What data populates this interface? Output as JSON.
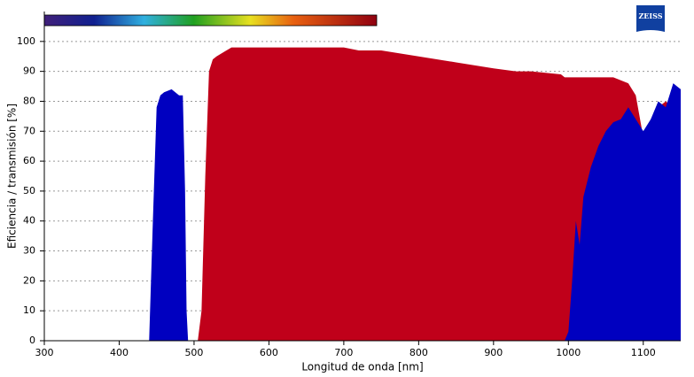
{
  "chart_data": {
    "type": "area",
    "logo": "ZEISS",
    "xlabel": "Longitud de onda [nm]",
    "ylabel": "Eficiencia / transmisión [%]",
    "x": [
      300,
      440,
      445,
      450,
      455,
      460,
      470,
      480,
      485,
      488,
      490,
      492,
      505,
      510,
      515,
      520,
      525,
      530,
      550,
      600,
      650,
      700,
      720,
      750,
      800,
      850,
      900,
      930,
      950,
      990,
      995,
      1000,
      1005,
      1010,
      1015,
      1020,
      1030,
      1040,
      1050,
      1060,
      1070,
      1080,
      1090,
      1100,
      1110,
      1120,
      1130,
      1140,
      1150
    ],
    "series": [
      {
        "color": "#c0001a",
        "values": [
          0,
          0,
          0,
          0,
          0,
          0,
          0,
          0,
          0,
          0,
          0,
          0,
          0,
          10,
          55,
          90,
          94,
          95,
          98,
          98,
          98,
          98,
          97,
          97,
          95,
          93,
          91,
          90,
          90,
          89,
          88,
          88,
          88,
          88,
          88,
          88,
          88,
          88,
          88,
          88,
          87,
          86,
          82,
          68,
          74,
          78,
          80,
          78,
          82
        ]
      },
      {
        "color": "#0000c0",
        "values": [
          0,
          0,
          40,
          78,
          82,
          83,
          84,
          82,
          82,
          50,
          10,
          0,
          0,
          0,
          0,
          0,
          0,
          0,
          0,
          0,
          0,
          0,
          0,
          0,
          0,
          0,
          0,
          0,
          0,
          0,
          0,
          3,
          20,
          40,
          32,
          48,
          58,
          65,
          70,
          73,
          74,
          78,
          74,
          70,
          74,
          80,
          78,
          86,
          84
        ]
      }
    ],
    "xlim": [
      300,
      1150
    ],
    "ylim": [
      0,
      110
    ],
    "xticks": [
      300,
      400,
      500,
      600,
      700,
      800,
      900,
      1000,
      1100
    ],
    "yticks": [
      0,
      10,
      20,
      30,
      40,
      50,
      60,
      70,
      80,
      90,
      100
    ],
    "grid": true
  }
}
